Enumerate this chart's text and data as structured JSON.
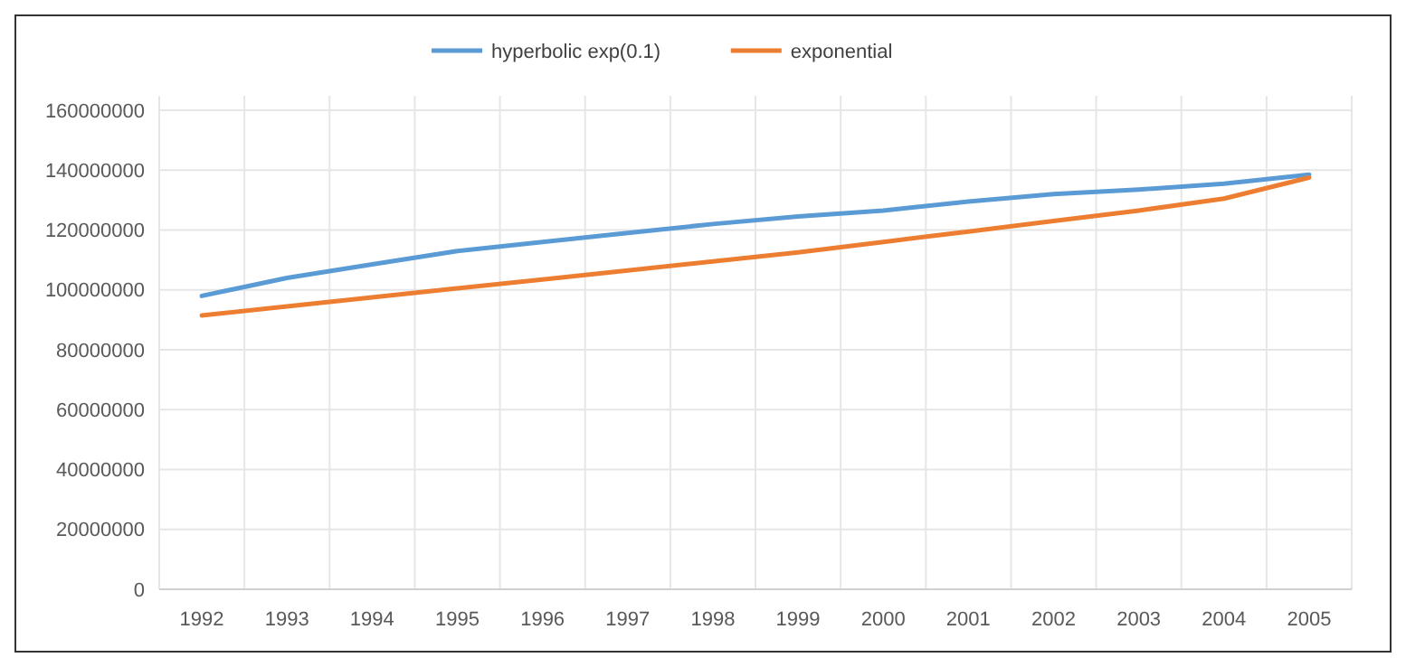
{
  "chart_data": {
    "type": "line",
    "categories": [
      "1992",
      "1993",
      "1994",
      "1995",
      "1996",
      "1997",
      "1998",
      "1999",
      "2000",
      "2001",
      "2002",
      "2003",
      "2004",
      "2005"
    ],
    "series": [
      {
        "name": "hyperbolic exp(0.1)",
        "color": "#5b9bd5",
        "values": [
          98000000,
          104000000,
          108500000,
          113000000,
          116000000,
          119000000,
          122000000,
          124500000,
          126500000,
          129500000,
          132000000,
          133500000,
          135500000,
          138500000
        ]
      },
      {
        "name": "exponential",
        "color": "#ed7d31",
        "values": [
          91500000,
          94500000,
          97500000,
          100500000,
          103500000,
          106500000,
          109500000,
          112500000,
          116000000,
          119500000,
          123000000,
          126500000,
          130500000,
          137500000
        ]
      }
    ],
    "ylim": [
      0,
      160000000
    ],
    "yticks": [
      0,
      20000000,
      40000000,
      60000000,
      80000000,
      100000000,
      120000000,
      140000000,
      160000000
    ],
    "grid": true,
    "legend": "top",
    "marker": "none",
    "line_style": "solid"
  }
}
